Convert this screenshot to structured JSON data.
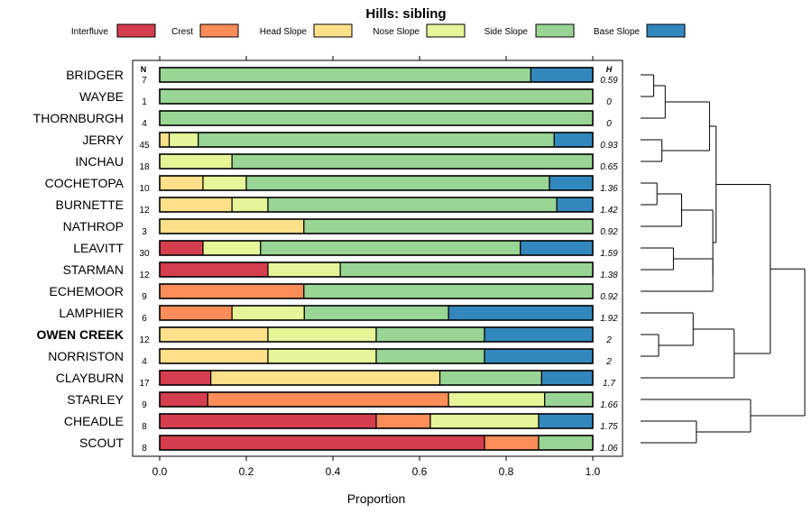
{
  "chart_data": {
    "type": "bar",
    "stacked": true,
    "orientation": "horizontal",
    "title": "Hills: sibling",
    "xlabel": "Proportion",
    "xlim": [
      0,
      1
    ],
    "x_ticks": [
      "0.0",
      "0.2",
      "0.4",
      "0.6",
      "0.8",
      "1.0"
    ],
    "n_header": "N",
    "h_header": "H",
    "legend": [
      {
        "name": "Interfluve",
        "color": "#d53e4f"
      },
      {
        "name": "Crest",
        "color": "#fc8d59"
      },
      {
        "name": "Head Slope",
        "color": "#fee08b"
      },
      {
        "name": "Nose Slope",
        "color": "#e6f598"
      },
      {
        "name": "Side Slope",
        "color": "#99d594"
      },
      {
        "name": "Base Slope",
        "color": "#3288bd"
      }
    ],
    "rows": [
      {
        "label": "BRIDGER",
        "n": "7",
        "h": "0.59",
        "values": [
          0,
          0,
          0,
          0,
          0.857,
          0.143
        ]
      },
      {
        "label": "WAYBE",
        "n": "1",
        "h": "0",
        "values": [
          0,
          0,
          0,
          0,
          1.0,
          0
        ]
      },
      {
        "label": "THORNBURGH",
        "n": "4",
        "h": "0",
        "values": [
          0,
          0,
          0,
          0,
          1.0,
          0
        ]
      },
      {
        "label": "JERRY",
        "n": "45",
        "h": "0.93",
        "values": [
          0,
          0,
          0.022,
          0.067,
          0.822,
          0.089
        ]
      },
      {
        "label": "INCHAU",
        "n": "18",
        "h": "0.65",
        "values": [
          0,
          0,
          0,
          0.167,
          0.833,
          0
        ]
      },
      {
        "label": "COCHETOPA",
        "n": "10",
        "h": "1.36",
        "values": [
          0,
          0,
          0.1,
          0.1,
          0.7,
          0.1
        ]
      },
      {
        "label": "BURNETTE",
        "n": "12",
        "h": "1.42",
        "values": [
          0,
          0,
          0.167,
          0.083,
          0.667,
          0.083
        ]
      },
      {
        "label": "NATHROP",
        "n": "3",
        "h": "0.92",
        "values": [
          0,
          0,
          0.333,
          0,
          0.667,
          0
        ]
      },
      {
        "label": "LEAVITT",
        "n": "30",
        "h": "1.59",
        "values": [
          0.1,
          0,
          0,
          0.133,
          0.6,
          0.167
        ]
      },
      {
        "label": "STARMAN",
        "n": "12",
        "h": "1.38",
        "values": [
          0.25,
          0,
          0,
          0.167,
          0.583,
          0
        ]
      },
      {
        "label": "ECHEMOOR",
        "n": "9",
        "h": "0.92",
        "values": [
          0,
          0.333,
          0,
          0,
          0.667,
          0
        ]
      },
      {
        "label": "LAMPHIER",
        "n": "6",
        "h": "1.92",
        "values": [
          0,
          0.167,
          0,
          0.167,
          0.333,
          0.333
        ]
      },
      {
        "label": "OWEN CREEK",
        "n": "12",
        "h": "2",
        "bold": true,
        "values": [
          0,
          0,
          0.25,
          0.25,
          0.25,
          0.25
        ]
      },
      {
        "label": "NORRISTON",
        "n": "4",
        "h": "2",
        "values": [
          0,
          0,
          0.25,
          0.25,
          0.25,
          0.25
        ]
      },
      {
        "label": "CLAYBURN",
        "n": "17",
        "h": "1.7",
        "values": [
          0.118,
          0,
          0.529,
          0,
          0.235,
          0.118
        ]
      },
      {
        "label": "STARLEY",
        "n": "9",
        "h": "1.66",
        "values": [
          0.111,
          0.556,
          0,
          0.222,
          0.111,
          0
        ]
      },
      {
        "label": "CHEADLE",
        "n": "8",
        "h": "1.75",
        "values": [
          0.5,
          0.125,
          0,
          0.25,
          0,
          0.125
        ]
      },
      {
        "label": "SCOUT",
        "n": "8",
        "h": "1.06",
        "values": [
          0.75,
          0.125,
          0,
          0,
          0.125,
          0
        ]
      }
    ],
    "dendrogram": {
      "description": "hierarchical clustering of rows (row indices, merge heights in relative units 0..1)",
      "merges": [
        {
          "a": "r0",
          "b": "r1",
          "height": 0.08
        },
        {
          "a": "m0",
          "b": "r2",
          "height": 0.15
        },
        {
          "a": "r3",
          "b": "r4",
          "height": 0.13
        },
        {
          "a": "m1",
          "b": "m2",
          "height": 0.42
        },
        {
          "a": "r5",
          "b": "r6",
          "height": 0.1
        },
        {
          "a": "m4",
          "b": "r7",
          "height": 0.25
        },
        {
          "a": "r8",
          "b": "r9",
          "height": 0.2
        },
        {
          "a": "m6",
          "b": "r10",
          "height": 0.44
        },
        {
          "a": "m5",
          "b": "m7",
          "height": 0.44
        },
        {
          "a": "m3",
          "b": "m8",
          "height": 0.46
        },
        {
          "a": "r12",
          "b": "r13",
          "height": 0.11
        },
        {
          "a": "r11",
          "b": "m10",
          "height": 0.32
        },
        {
          "a": "m11",
          "b": "r14",
          "height": 0.57
        },
        {
          "a": "m9",
          "b": "m12",
          "height": 0.79
        },
        {
          "a": "r16",
          "b": "r17",
          "height": 0.34
        },
        {
          "a": "r15",
          "b": "m14",
          "height": 0.67
        },
        {
          "a": "m13",
          "b": "m15",
          "height": 1.0
        }
      ]
    }
  }
}
